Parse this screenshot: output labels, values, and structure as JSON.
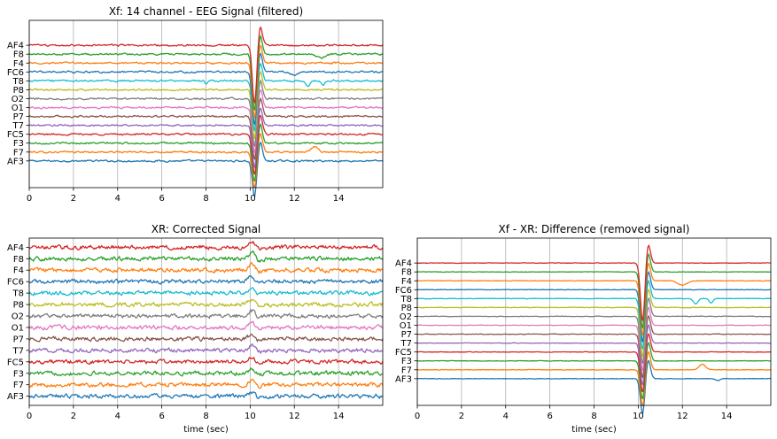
{
  "figure": {
    "background": "#ffffff"
  },
  "chart_data": [
    {
      "type": "line",
      "panel": "top-left",
      "title": "Xf: 14 channel - EEG Signal (filtered)",
      "xlabel": "",
      "xlim": [
        0,
        16
      ],
      "xticks": [
        0,
        2,
        4,
        6,
        8,
        10,
        12,
        14
      ],
      "xtick_labels": [
        "0",
        "2",
        "4",
        "6",
        "8",
        "10",
        "12",
        "14"
      ],
      "ylim": [
        -3,
        15.8
      ],
      "grid": "vertical",
      "channels": [
        "AF3",
        "F7",
        "F3",
        "FC5",
        "T7",
        "P7",
        "O1",
        "O2",
        "P8",
        "T8",
        "FC6",
        "F4",
        "F8",
        "AF4"
      ],
      "noise": 0.07,
      "artifact": {
        "t": 10.2,
        "amplitude": -4.0,
        "width": 0.1
      },
      "events": [
        {
          "channel": "T8",
          "t": 8.0,
          "amplitude": -0.4,
          "width": 0.05
        },
        {
          "channel": "T8",
          "t": 12.6,
          "amplitude": -0.6,
          "width": 0.1
        },
        {
          "channel": "T8",
          "t": 13.3,
          "amplitude": -0.5,
          "width": 0.08
        },
        {
          "channel": "F7",
          "t": 12.9,
          "amplitude": 0.6,
          "width": 0.15
        },
        {
          "channel": "FC6",
          "t": 12.0,
          "amplitude": -0.3,
          "width": 0.2
        },
        {
          "channel": "F8",
          "t": 13.2,
          "amplitude": -0.4,
          "width": 0.2
        }
      ]
    },
    {
      "type": "line",
      "panel": "bottom-left",
      "title": "XR: Corrected Signal",
      "xlabel": "time (sec)",
      "xlim": [
        0,
        16
      ],
      "xticks": [
        0,
        2,
        4,
        6,
        8,
        10,
        12,
        14
      ],
      "xtick_labels": [
        "0",
        "2",
        "4",
        "6",
        "8",
        "10",
        "12",
        "14"
      ],
      "ylim": [
        -0.8,
        13.8
      ],
      "grid": "vertical",
      "channels": [
        "AF3",
        "F7",
        "F3",
        "FC5",
        "T7",
        "P7",
        "O1",
        "O2",
        "P8",
        "T8",
        "FC6",
        "F4",
        "F8",
        "AF4"
      ],
      "noise": 0.12,
      "artifact": {
        "t": 10.1,
        "amplitude": 0.35,
        "width": 0.15
      },
      "events": []
    },
    {
      "type": "line",
      "panel": "bottom-right",
      "title": "Xf - XR: Difference (removed signal)",
      "xlabel": "time (sec)",
      "xlim": [
        0,
        16
      ],
      "xticks": [
        0,
        2,
        4,
        6,
        8,
        10,
        12,
        14
      ],
      "xtick_labels": [
        "0",
        "2",
        "4",
        "6",
        "8",
        "10",
        "12",
        "14"
      ],
      "ylim": [
        -3,
        15.8
      ],
      "grid": "vertical",
      "channels": [
        "AF3",
        "F7",
        "F3",
        "FC5",
        "T7",
        "P7",
        "O1",
        "O2",
        "P8",
        "T8",
        "FC6",
        "F4",
        "F8",
        "AF4"
      ],
      "noise": 0.02,
      "artifact": {
        "t": 10.2,
        "amplitude": -4.0,
        "width": 0.1
      },
      "events": [
        {
          "channel": "T8",
          "t": 12.6,
          "amplitude": -0.6,
          "width": 0.1
        },
        {
          "channel": "T8",
          "t": 13.3,
          "amplitude": -0.5,
          "width": 0.08
        },
        {
          "channel": "F7",
          "t": 12.9,
          "amplitude": 0.6,
          "width": 0.15
        },
        {
          "channel": "F4",
          "t": 12.0,
          "amplitude": -0.5,
          "width": 0.2
        },
        {
          "channel": "AF3",
          "t": 13.6,
          "amplitude": -0.2,
          "width": 0.1
        }
      ]
    }
  ],
  "channel_colors": [
    "#1f77b4",
    "#ff7f0e",
    "#2ca02c",
    "#d62728",
    "#9467bd",
    "#8c564b",
    "#e377c2",
    "#7f7f7f",
    "#bcbd22",
    "#17becf",
    "#1f77b4",
    "#ff7f0e",
    "#2ca02c",
    "#d62728"
  ],
  "grid_color": "#b0b0b0",
  "axis_color": "#000000"
}
